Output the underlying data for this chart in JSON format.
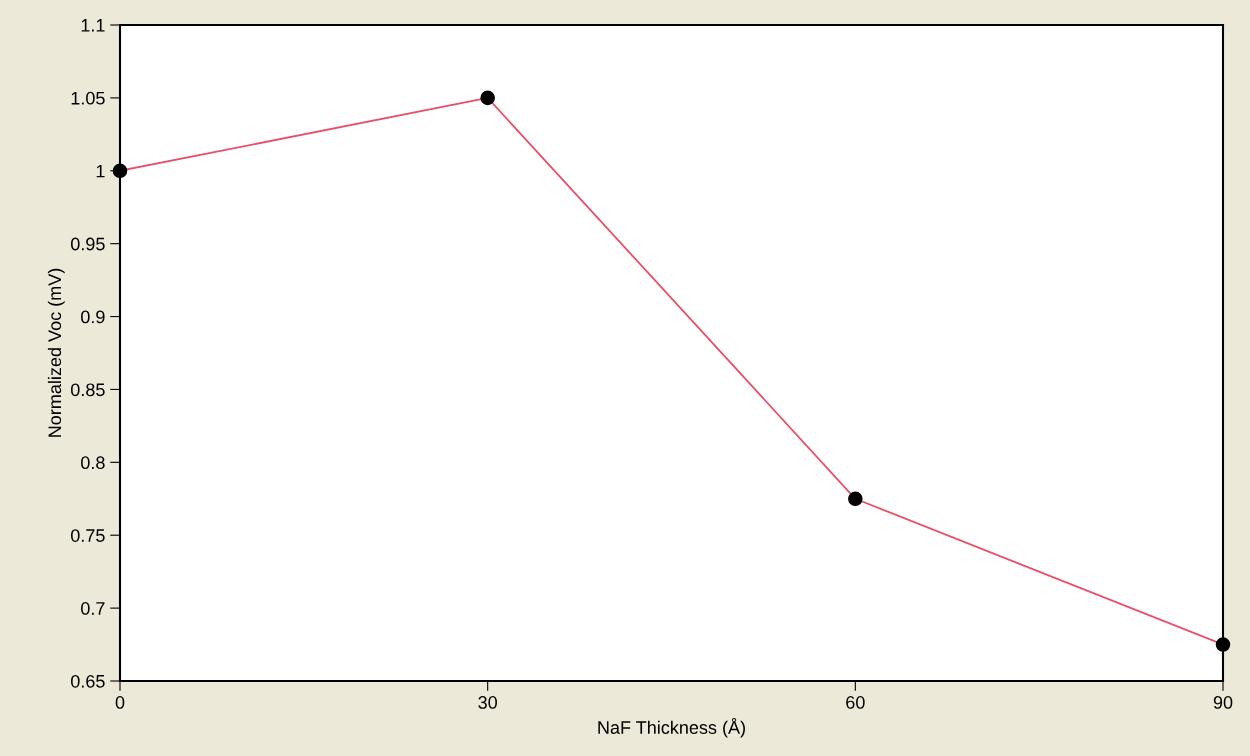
{
  "chart_data": {
    "type": "line",
    "xlabel": "NaF Thickness (Å)",
    "ylabel": "Normalized Voc (mV)",
    "x": [
      0,
      30,
      60,
      90
    ],
    "series": [
      {
        "color": "#e8506a",
        "values": [
          1,
          1.05,
          0.775,
          0.675
        ]
      }
    ],
    "xlim": [
      0,
      90
    ],
    "xticks": [
      0,
      30,
      60,
      90
    ],
    "ylim": [
      0.65,
      1.1
    ],
    "yticks": [
      0.65,
      0.7,
      0.75,
      0.8,
      0.85,
      0.9,
      0.95,
      1,
      1.05,
      1.1
    ],
    "marker": "circle",
    "line_style": "solid",
    "grid": false
  }
}
